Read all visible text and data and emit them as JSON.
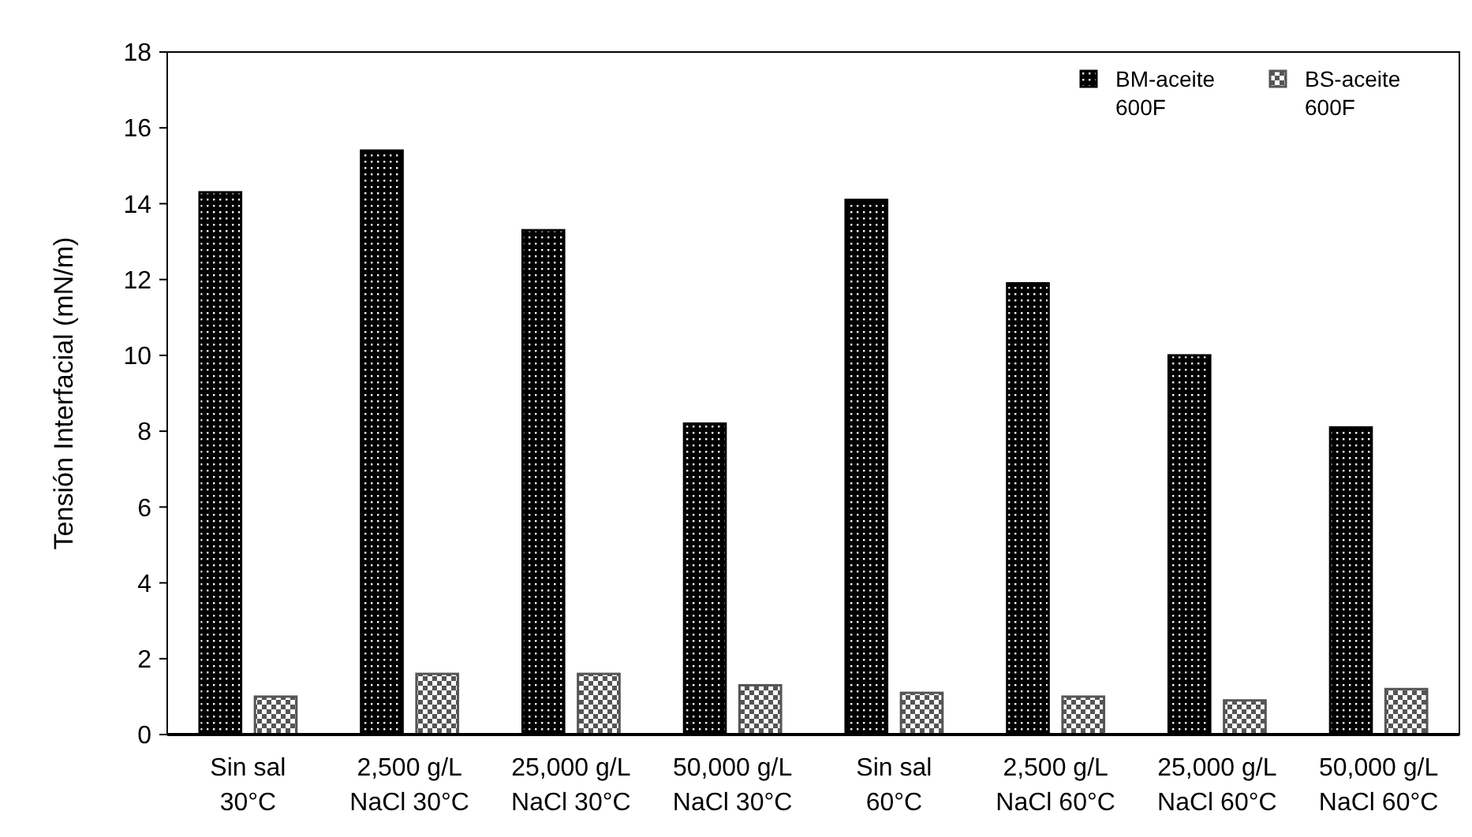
{
  "chart_data": {
    "type": "bar",
    "ylabel": "Tensión Interfacial (mN/m)",
    "categories": [
      "Sin sal\n30°C",
      "2,500 g/L\nNaCl 30°C",
      "25,000 g/L\nNaCl 30°C",
      "50,000 g/L\nNaCl 30°C",
      "Sin sal\n60°C",
      "2,500 g/L\nNaCl 60°C",
      "25,000 g/L\nNaCl 60°C",
      "50,000 g/L\nNaCl 60°C"
    ],
    "series": [
      {
        "name": "BM-aceite\n600F",
        "color": "#000000",
        "values": [
          14.3,
          15.4,
          13.3,
          8.2,
          14.1,
          11.9,
          10.0,
          8.1
        ]
      },
      {
        "name": "BS-aceite\n600F",
        "color": "#555555",
        "values": [
          1.0,
          1.6,
          1.6,
          1.3,
          1.1,
          1.0,
          0.9,
          1.2
        ]
      }
    ],
    "ylim": [
      0,
      18
    ],
    "yticks": [
      0,
      2,
      4,
      6,
      8,
      10,
      12,
      14,
      16,
      18
    ],
    "grid": false,
    "legend": "top right"
  }
}
